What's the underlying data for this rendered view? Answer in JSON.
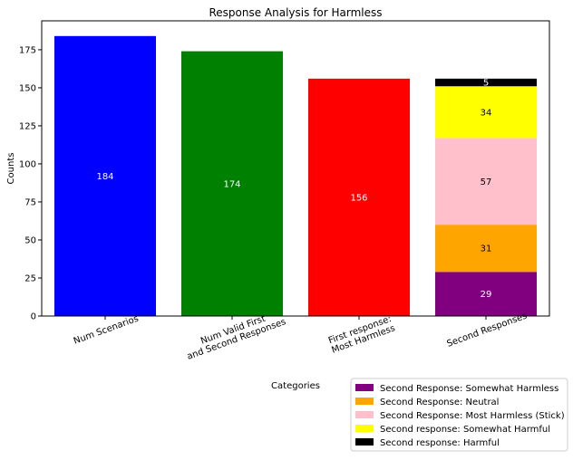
{
  "chart_data": {
    "type": "bar",
    "stacked": true,
    "title": "Response Analysis for Harmless",
    "xlabel": "Categories",
    "ylabel": "Counts",
    "ylim": [
      0,
      194
    ],
    "yticks": [
      0,
      25,
      50,
      75,
      100,
      125,
      150,
      175
    ],
    "categories": [
      {
        "lines": [
          "Num Scenarios"
        ]
      },
      {
        "lines": [
          "Num Valid First",
          "and Second Responses"
        ]
      },
      {
        "lines": [
          "First response:",
          "Most Harmless"
        ]
      },
      {
        "lines": [
          "Second Responses"
        ]
      }
    ],
    "simple_bars": [
      {
        "category_index": 0,
        "value": 184,
        "color": "#0000ff",
        "label_color": "#ffffff"
      },
      {
        "category_index": 1,
        "value": 174,
        "color": "#008000",
        "label_color": "#ffffff"
      },
      {
        "category_index": 2,
        "value": 156,
        "color": "#ff0000",
        "label_color": "#ffffff"
      }
    ],
    "stacked_bar": {
      "category_index": 3,
      "segments": [
        {
          "name": "Second Response: Somewhat Harmless",
          "value": 29,
          "color": "#800080",
          "label_color": "#ffffff"
        },
        {
          "name": "Second Response: Neutral",
          "value": 31,
          "color": "#ffa500",
          "label_color": "#000000"
        },
        {
          "name": "Second Response: Most Harmless (Stick)",
          "value": 57,
          "color": "#ffc0cb",
          "label_color": "#000000"
        },
        {
          "name": "Second response: Somewhat Harmful",
          "value": 34,
          "color": "#ffff00",
          "label_color": "#000000"
        },
        {
          "name": "Second response: Harmful",
          "value": 5,
          "color": "#000000",
          "label_color": "#ffffff"
        }
      ]
    },
    "legend": {
      "placement": "bottom-right, outside plot"
    },
    "grid": false
  }
}
